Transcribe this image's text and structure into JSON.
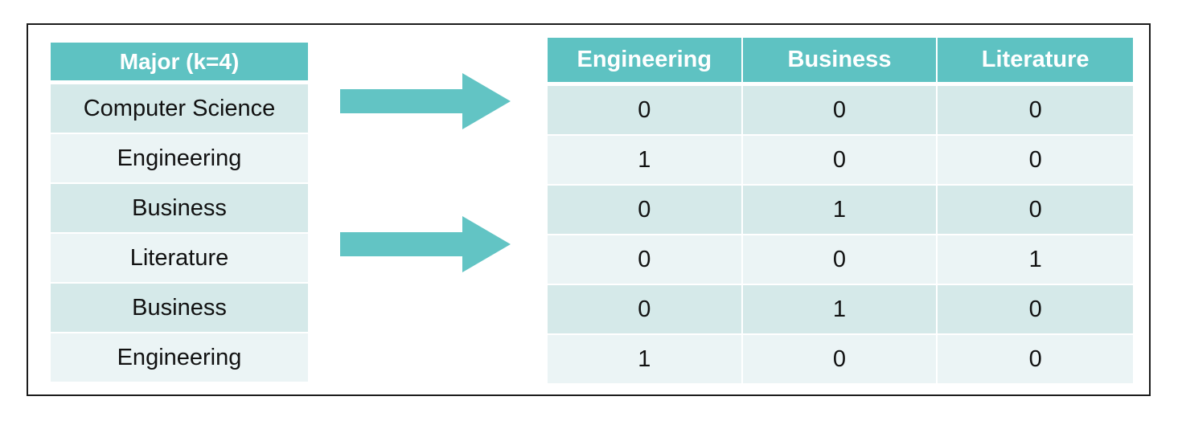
{
  "colors": {
    "header": "#5ec2c2",
    "row_dark": "#d5e9e9",
    "row_light": "#ebf4f5",
    "arrow": "#62c4c4"
  },
  "left_table": {
    "header": "Major (k=4)",
    "rows": [
      "Computer Science",
      "Engineering",
      "Business",
      "Literature",
      "Business",
      "Engineering"
    ]
  },
  "right_table": {
    "headers": [
      "Engineering",
      "Business",
      "Literature"
    ],
    "rows": [
      [
        "0",
        "0",
        "0"
      ],
      [
        "1",
        "0",
        "0"
      ],
      [
        "0",
        "1",
        "0"
      ],
      [
        "0",
        "0",
        "1"
      ],
      [
        "0",
        "1",
        "0"
      ],
      [
        "1",
        "0",
        "0"
      ]
    ]
  },
  "arrows": [
    {
      "icon": "right-arrow-icon"
    },
    {
      "icon": "right-arrow-icon"
    }
  ]
}
